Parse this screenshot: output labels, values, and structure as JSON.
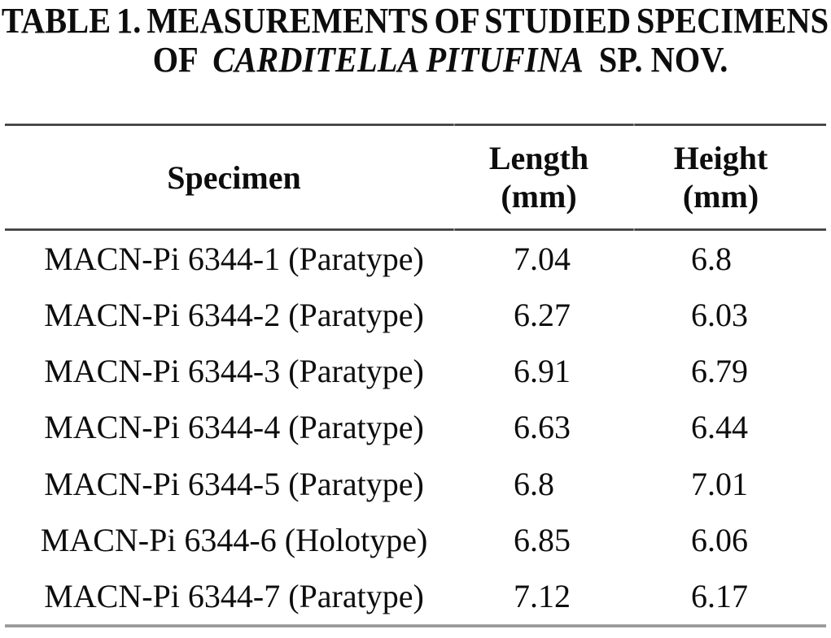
{
  "title": {
    "line1": "TABLE 1. MEASUREMENTS OF STUDIED SPECIMENS",
    "line2_prefix": "OF",
    "line2_species": "CARDITELLA PITUFINA",
    "line2_suffix": "SP. NOV."
  },
  "header": {
    "specimen": "Specimen",
    "length_line1": "Length",
    "length_line2": "(mm)",
    "height_line1": "Height",
    "height_line2": "(mm)"
  },
  "rows": [
    {
      "specimen": "MACN-Pi 6344-1 (Paratype)",
      "length": "7.04",
      "height": "6.8"
    },
    {
      "specimen": "MACN-Pi 6344-2 (Paratype)",
      "length": "6.27",
      "height": "6.03"
    },
    {
      "specimen": "MACN-Pi 6344-3 (Paratype)",
      "length": "6.91",
      "height": "6.79"
    },
    {
      "specimen": "MACN-Pi 6344-4 (Paratype)",
      "length": "6.63",
      "height": "6.44"
    },
    {
      "specimen": "MACN-Pi 6344-5 (Paratype)",
      "length": "6.8",
      "height": "7.01"
    },
    {
      "specimen": "MACN-Pi 6344-6 (Holotype)",
      "length": "6.85",
      "height": "6.06"
    },
    {
      "specimen": "MACN-Pi 6344-7 (Paratype)",
      "length": "7.12",
      "height": "6.17"
    }
  ]
}
